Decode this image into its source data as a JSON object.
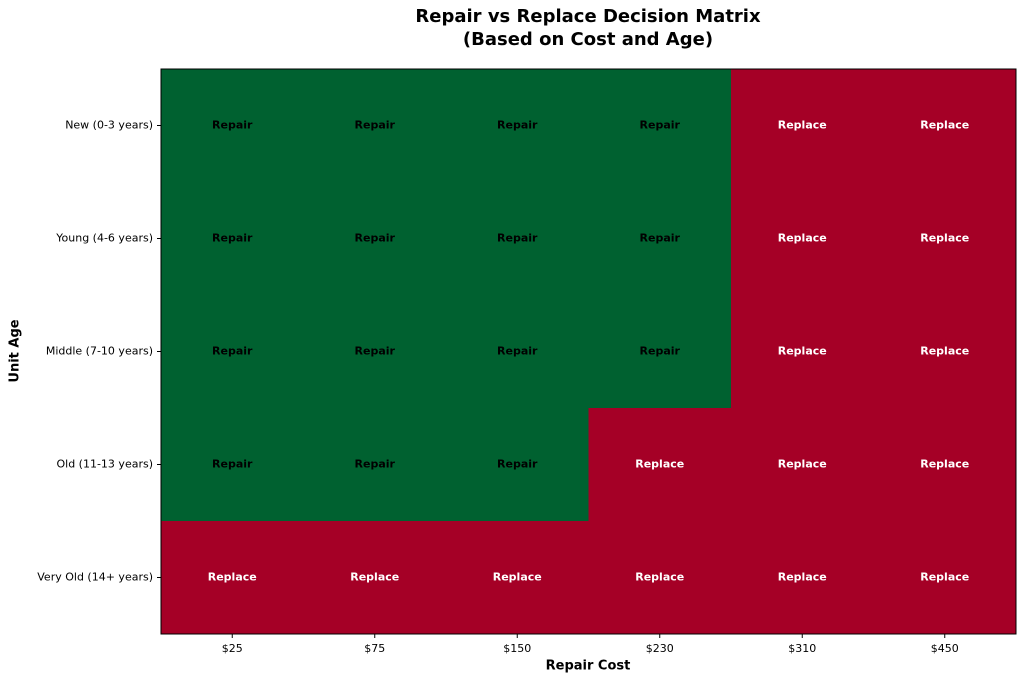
{
  "chart_data": {
    "type": "heatmap",
    "title": [
      "Repair vs Replace Decision Matrix",
      "(Based on Cost and Age)"
    ],
    "x_label": "Repair Cost",
    "y_label": "Unit Age",
    "x_categories": [
      "$25",
      "$75",
      "$150",
      "$230",
      "$310",
      "$450"
    ],
    "y_categories": [
      "New (0-3 years)",
      "Young (4-6 years)",
      "Middle (7-10 years)",
      "Old (11-13 years)",
      "Very Old (14+ years)"
    ],
    "cells": [
      [
        "Repair",
        "Repair",
        "Repair",
        "Repair",
        "Replace",
        "Replace"
      ],
      [
        "Repair",
        "Repair",
        "Repair",
        "Repair",
        "Replace",
        "Replace"
      ],
      [
        "Repair",
        "Repair",
        "Repair",
        "Repair",
        "Replace",
        "Replace"
      ],
      [
        "Repair",
        "Repair",
        "Repair",
        "Replace",
        "Replace",
        "Replace"
      ],
      [
        "Replace",
        "Replace",
        "Replace",
        "Replace",
        "Replace",
        "Replace"
      ]
    ],
    "cell_colors": {
      "Repair": "#006130",
      "Replace": "#a50026"
    },
    "text_colors": {
      "Repair": "#000000",
      "Replace": "#ffffff"
    }
  }
}
